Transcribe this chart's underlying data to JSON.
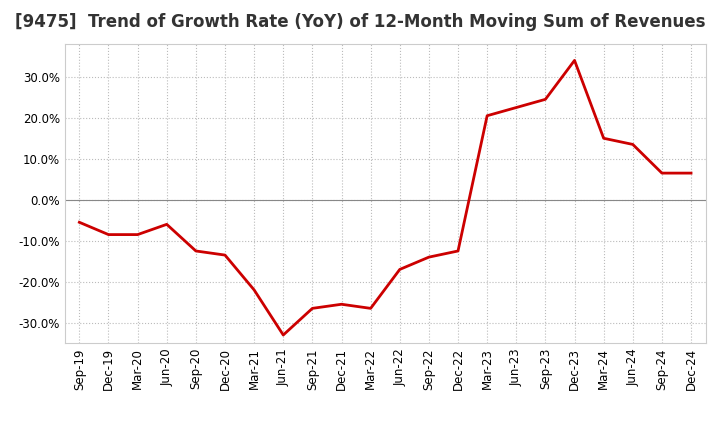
{
  "title": "[9475]  Trend of Growth Rate (YoY) of 12-Month Moving Sum of Revenues",
  "x_labels": [
    "Sep-19",
    "Dec-19",
    "Mar-20",
    "Jun-20",
    "Sep-20",
    "Dec-20",
    "Mar-21",
    "Jun-21",
    "Sep-21",
    "Dec-21",
    "Mar-22",
    "Jun-22",
    "Sep-22",
    "Dec-22",
    "Mar-23",
    "Jun-23",
    "Sep-23",
    "Dec-23",
    "Mar-24",
    "Jun-24",
    "Sep-24",
    "Dec-24"
  ],
  "y_values": [
    -5.5,
    -8.5,
    -8.5,
    -6.0,
    -12.5,
    -13.5,
    -22.0,
    -33.0,
    -26.5,
    -25.5,
    -26.5,
    -17.0,
    -14.0,
    -12.5,
    20.5,
    22.5,
    24.5,
    34.0,
    15.0,
    13.5,
    6.5,
    6.5
  ],
  "line_color": "#cc0000",
  "line_width": 2.0,
  "ylim": [
    -35,
    38
  ],
  "yticks": [
    -30,
    -20,
    -10,
    0,
    10,
    20,
    30
  ],
  "grid_color": "#bbbbbb",
  "zero_line_color": "#888888",
  "bg_color": "#ffffff",
  "title_fontsize": 12,
  "tick_fontsize": 8.5,
  "title_color": "#333333"
}
